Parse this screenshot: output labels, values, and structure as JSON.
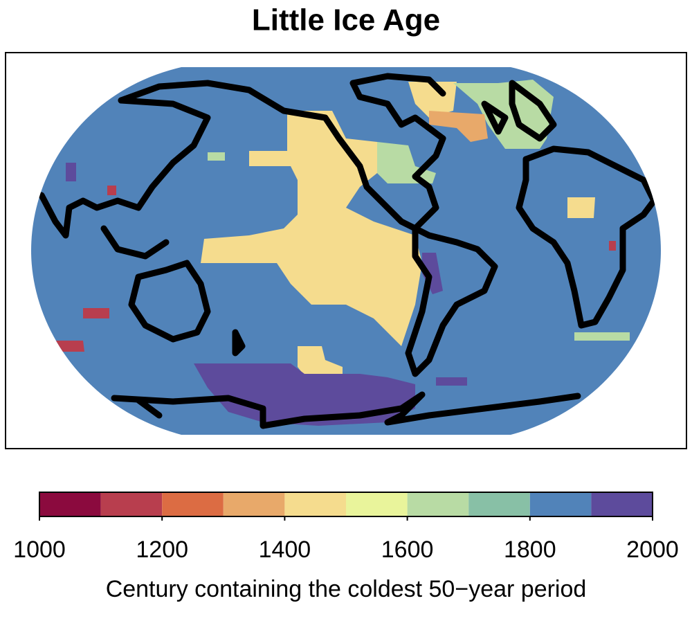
{
  "title": "Little Ice Age",
  "colorbar": {
    "label": "Century containing the coldest 50−year period",
    "bins": [
      1000,
      1100,
      1200,
      1300,
      1400,
      1500,
      1600,
      1700,
      1800,
      1900,
      2000
    ],
    "colors": [
      "#8b0a3e",
      "#b83e4e",
      "#dc6c43",
      "#e8a96a",
      "#f5dc8e",
      "#e9f49b",
      "#b8dba4",
      "#88c0a6",
      "#5183b9",
      "#5d4b9c"
    ],
    "ticks": [
      1000,
      1200,
      1400,
      1600,
      1800,
      2000
    ]
  }
}
